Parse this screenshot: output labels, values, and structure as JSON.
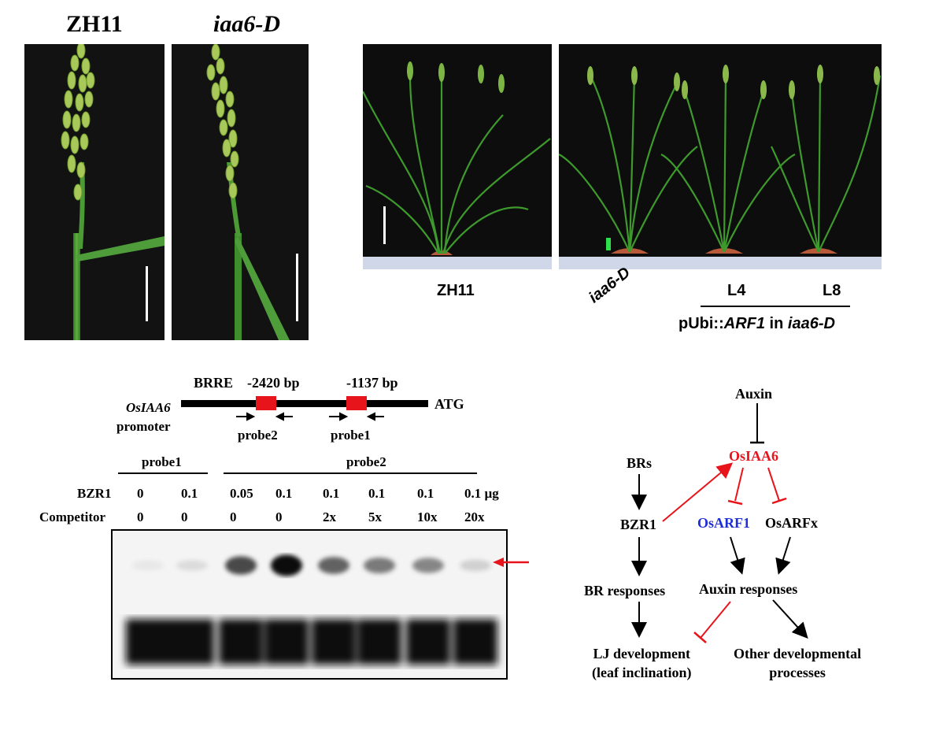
{
  "panel_a": {
    "label_left": "ZH11",
    "label_right": "iaa6-D"
  },
  "panel_b": {
    "labels": {
      "zh11": "ZH11",
      "iaa6d": "iaa6-D",
      "l4": "L4",
      "l8": "L8"
    },
    "caption_prefix": "pUbi::",
    "caption_gene": "ARF1",
    "caption_mid": " in ",
    "caption_genotype": "iaa6-D"
  },
  "panel_c": {
    "brre": "BRRE",
    "pos1": "-2420 bp",
    "pos2": "-1137 bp",
    "gene": "OsIAA6",
    "promoter": "promoter",
    "atg": "ATG",
    "probe2_under": "probe2",
    "probe1_under": "probe1",
    "group_probe1": "probe1",
    "group_probe2": "probe2",
    "row1_label": "BZR1",
    "row2_label": "Competitor",
    "bzr1_values": [
      "0",
      "0.1",
      "0.05",
      "0.1",
      "0.1",
      "0.1",
      "0.1",
      "0.1 µg"
    ],
    "competitor_values": [
      "0",
      "0",
      "0",
      "0",
      "2x",
      "5x",
      "10x",
      "20x"
    ],
    "band_intensity": [
      0.05,
      0.1,
      0.7,
      0.95,
      0.6,
      0.5,
      0.45,
      0.15
    ],
    "arrow_color": "#e8141c"
  },
  "panel_d": {
    "auxin": "Auxin",
    "osiaa6": "OsIAA6",
    "brs": "BRs",
    "bzr1": "BZR1",
    "osarf1": "OsARF1",
    "osarfx": "OsARFx",
    "br_responses": "BR responses",
    "auxin_responses": "Auxin responses",
    "lj_line1": "LJ development",
    "lj_line2": "(leaf inclination)",
    "other_line1": "Other developmental",
    "other_line2": "processes",
    "colors": {
      "red": "#e8141c",
      "blue": "#1f2fd6",
      "black": "#000000"
    }
  }
}
